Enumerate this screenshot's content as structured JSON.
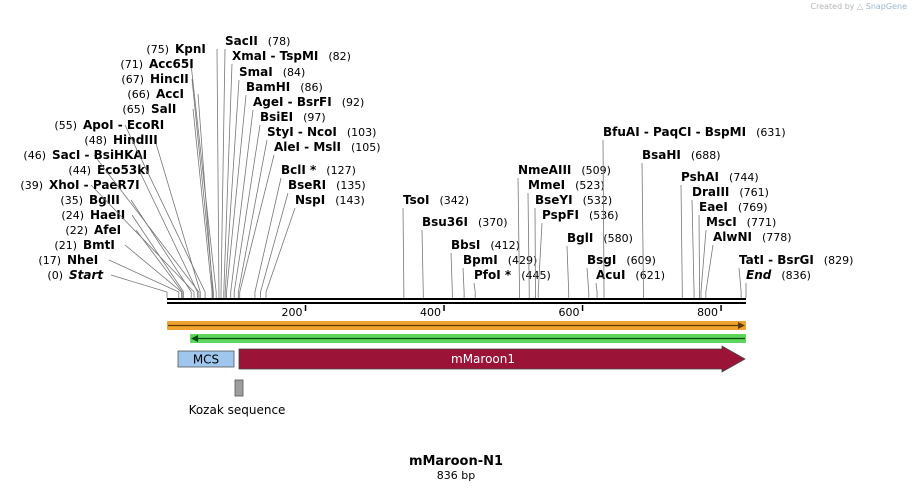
{
  "credit": {
    "prefix": "Created by",
    "brand": "SnapGene"
  },
  "sequence": {
    "name": "mMaroon-N1",
    "length_label": "836 bp",
    "length": 836
  },
  "colors": {
    "line": "#000000",
    "mcs": "#9fc7ee",
    "mmaroon": "#9b1337",
    "kozak": "#9e9e9e",
    "orange_arrow": "#f0a22f",
    "green_arrow": "#5ed65e"
  },
  "axis": {
    "ticks": [
      200,
      400,
      600,
      800
    ]
  },
  "sites": [
    {
      "pos": 0,
      "label": "Start",
      "pos_label": "(0)",
      "italic": true
    },
    {
      "pos": 17,
      "label": "NheI",
      "pos_label": "(17)"
    },
    {
      "pos": 21,
      "label": "BmtI",
      "pos_label": "(21)"
    },
    {
      "pos": 22,
      "label": "AfeI",
      "pos_label": "(22)"
    },
    {
      "pos": 24,
      "label": "HaeII",
      "pos_label": "(24)"
    },
    {
      "pos": 35,
      "label": "BglII",
      "pos_label": "(35)"
    },
    {
      "pos": 39,
      "label": "XhoI  - PaeR7I",
      "pos_label": "(39)"
    },
    {
      "pos": 44,
      "label": "Eco53kI",
      "pos_label": "(44)"
    },
    {
      "pos": 46,
      "label": "SacI  - BsiHKAI",
      "pos_label": "(46)"
    },
    {
      "pos": 48,
      "label": "HindIII",
      "pos_label": "(48)"
    },
    {
      "pos": 55,
      "label": "ApoI  - EcoRI",
      "pos_label": "(55)"
    },
    {
      "pos": 65,
      "label": "SalI",
      "pos_label": "(65)"
    },
    {
      "pos": 66,
      "label": "AccI",
      "pos_label": "(66)"
    },
    {
      "pos": 67,
      "label": "HincII",
      "pos_label": "(67)"
    },
    {
      "pos": 71,
      "label": "Acc65I",
      "pos_label": "(71)"
    },
    {
      "pos": 75,
      "label": "KpnI",
      "pos_label": "(75)"
    },
    {
      "pos": 78,
      "label": "SacII",
      "pos_label": "(78)"
    },
    {
      "pos": 82,
      "label": "XmaI  - TspMI",
      "pos_label": "(82)"
    },
    {
      "pos": 84,
      "label": "SmaI",
      "pos_label": "(84)"
    },
    {
      "pos": 86,
      "label": "BamHI",
      "pos_label": "(86)"
    },
    {
      "pos": 92,
      "label": "AgeI  - BsrFI",
      "pos_label": "(92)"
    },
    {
      "pos": 97,
      "label": "BsiEI",
      "pos_label": "(97)"
    },
    {
      "pos": 103,
      "label": "StyI  - NcoI",
      "pos_label": "(103)"
    },
    {
      "pos": 105,
      "label": "AleI  - MslI",
      "pos_label": "(105)"
    },
    {
      "pos": 127,
      "label": "BclI *",
      "pos_label": "(127)"
    },
    {
      "pos": 135,
      "label": "BseRI",
      "pos_label": "(135)"
    },
    {
      "pos": 143,
      "label": "NspI",
      "pos_label": "(143)"
    },
    {
      "pos": 342,
      "label": "TsoI",
      "pos_label": "(342)"
    },
    {
      "pos": 370,
      "label": "Bsu36I",
      "pos_label": "(370)"
    },
    {
      "pos": 412,
      "label": "BbsI",
      "pos_label": "(412)"
    },
    {
      "pos": 429,
      "label": "BpmI",
      "pos_label": "(429)"
    },
    {
      "pos": 445,
      "label": "PfoI *",
      "pos_label": "(445)"
    },
    {
      "pos": 509,
      "label": "NmeAIII",
      "pos_label": "(509)"
    },
    {
      "pos": 523,
      "label": "MmeI",
      "pos_label": "(523)"
    },
    {
      "pos": 532,
      "label": "BseYI",
      "pos_label": "(532)"
    },
    {
      "pos": 536,
      "label": "PspFI",
      "pos_label": "(536)"
    },
    {
      "pos": 580,
      "label": "BglI",
      "pos_label": "(580)"
    },
    {
      "pos": 609,
      "label": "BsgI",
      "pos_label": "(609)"
    },
    {
      "pos": 621,
      "label": "AcuI",
      "pos_label": "(621)"
    },
    {
      "pos": 631,
      "label": "BfuAI  - PaqCI  - BspMI",
      "pos_label": "(631)"
    },
    {
      "pos": 688,
      "label": "BsaHI",
      "pos_label": "(688)"
    },
    {
      "pos": 744,
      "label": "PshAI",
      "pos_label": "(744)"
    },
    {
      "pos": 761,
      "label": "DraIII",
      "pos_label": "(761)"
    },
    {
      "pos": 769,
      "label": "EaeI",
      "pos_label": "(769)"
    },
    {
      "pos": 771,
      "label": "MscI",
      "pos_label": "(771)"
    },
    {
      "pos": 778,
      "label": "AlwNI",
      "pos_label": "(778)"
    },
    {
      "pos": 829,
      "label": "TatI  - BsrGI",
      "pos_label": "(829)"
    },
    {
      "pos": 836,
      "label": "End",
      "pos_label": "(836)",
      "italic": true
    }
  ],
  "features": [
    {
      "name": "MCS",
      "label": "MCS"
    },
    {
      "name": "mMaroon1",
      "label": "mMaroon1"
    },
    {
      "name": "Kozak",
      "label": "Kozak sequence"
    }
  ]
}
